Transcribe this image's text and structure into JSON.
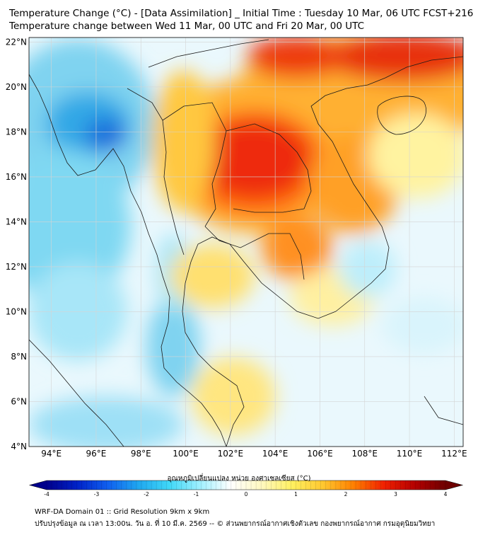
{
  "header": {
    "title_line1": "Temperature Change (°C) - [Data Assimilation] _ Initial Time : Tuesday 10 Mar, 06 UTC FCST+216",
    "title_line2": "Temperature change between Wed 11 Mar, 00 UTC and Fri 20 Mar, 00 UTC"
  },
  "map": {
    "lat_labels": [
      "22°N",
      "20°N",
      "18°N",
      "16°N",
      "14°N",
      "12°N",
      "10°N",
      "8°N",
      "6°N",
      "4°N"
    ],
    "lon_labels": [
      "94°E",
      "96°E",
      "98°E",
      "100°E",
      "102°E",
      "104°E",
      "106°E",
      "108°E",
      "110°E",
      "112°E"
    ],
    "lat_range": [
      4,
      22.2
    ],
    "lon_range": [
      93,
      112.4
    ]
  },
  "colorbar": {
    "label": "อุณหภูมิเปลี่ยนแปลง หน่วย องศาเซลเซียส (°C)",
    "ticks": [
      "-4",
      "-3",
      "-2",
      "-1",
      "0",
      "1",
      "2",
      "3",
      "4"
    ],
    "min": -4,
    "max": 4,
    "colors": [
      "#00008c",
      "#0022c8",
      "#1060f0",
      "#20a8f0",
      "#40d8f8",
      "#a0f0ff",
      "#ffffff",
      "#fff8c0",
      "#fff060",
      "#ffc830",
      "#ff8000",
      "#f02000",
      "#b40000",
      "#6e0000"
    ]
  },
  "footer": {
    "line1": "WRF-DA Domain 01 :: Grid Resolution 9km x 9km",
    "line2": "ปรับปรุงข้อมูล ณ เวลา 13:00น. วัน อ. ที่ 10 มี.ค. 2569 -- © ส่วนพยากรณ์อากาศเชิงตัวเลข กองพยากรณ์อากาศ กรมอุตุนิยมวิทยา"
  }
}
